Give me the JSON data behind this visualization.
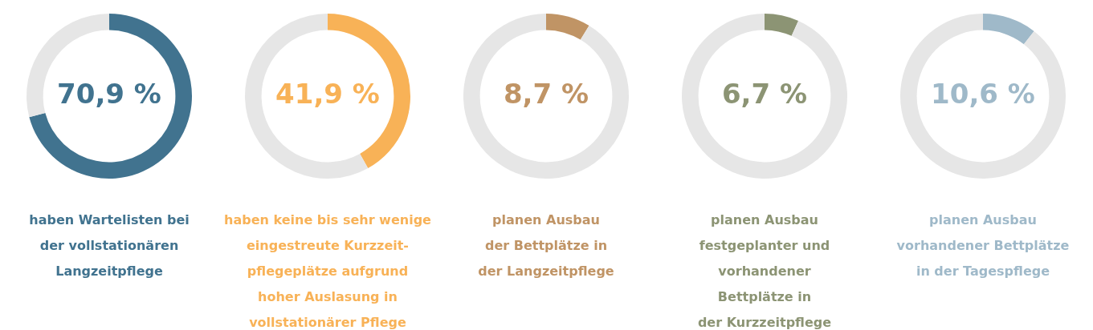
{
  "chart_data": [
    {
      "type": "donut",
      "categories": [
        null,
        null
      ],
      "values": [
        70.9,
        29.1
      ],
      "colors": [
        "#41738f",
        "#e6e6e6"
      ],
      "value_labels": [
        "70,9 %",
        null
      ],
      "annotations": [
        "haben Wartelisten bei\nder vollstationären\nLangzeitpflege"
      ]
    },
    {
      "type": "donut",
      "categories": [
        null,
        null
      ],
      "values": [
        41.9,
        58.1
      ],
      "colors": [
        "#f8b257",
        "#e6e6e6"
      ],
      "value_labels": [
        "41,9 %",
        null
      ],
      "annotations": [
        "haben keine bis sehr wenige\neingestreute Kurzzeit-\npflegeplätze aufgrund\nhoher Auslasung in\nvollstationärer Pflege"
      ]
    },
    {
      "type": "donut",
      "categories": [
        null,
        null
      ],
      "values": [
        8.7,
        91.3
      ],
      "colors": [
        "#c09465",
        "#e6e6e6"
      ],
      "value_labels": [
        "8,7 %",
        null
      ],
      "annotations": [
        "planen Ausbau\nder Bettplätze in\nder Langzeitpflege"
      ]
    },
    {
      "type": "donut",
      "categories": [
        null,
        null
      ],
      "values": [
        6.7,
        93.3
      ],
      "colors": [
        "#8c9474",
        "#e6e6e6"
      ],
      "value_labels": [
        "6,7 %",
        null
      ],
      "annotations": [
        "planen Ausbau\nfestgeplanter und\nvorhandener\nBettplätze in\nder Kurzzeitpflege"
      ]
    },
    {
      "type": "donut",
      "categories": [
        null,
        null
      ],
      "values": [
        10.6,
        89.4
      ],
      "colors": [
        "#9fb9c9",
        "#e6e6e6"
      ],
      "value_labels": [
        "10,6 %",
        null
      ],
      "annotations": [
        "planen Ausbau\nvorhandener Bettplätze\nin der Tagespflege"
      ]
    }
  ]
}
